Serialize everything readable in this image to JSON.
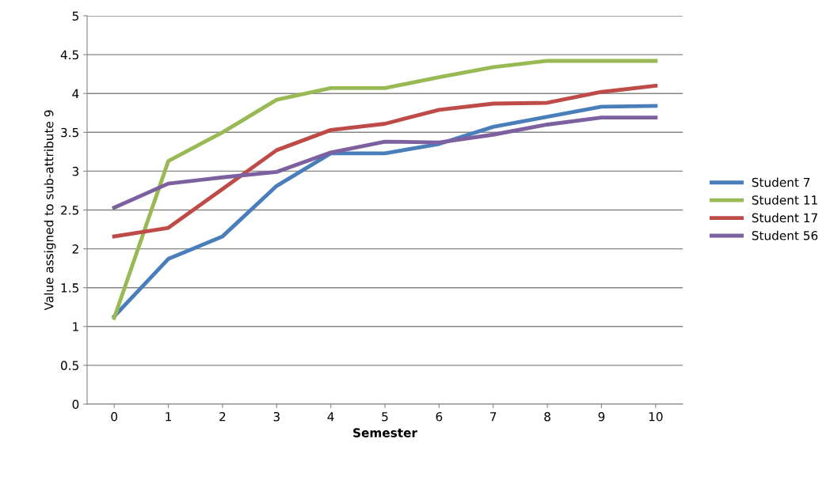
{
  "chart_data": {
    "type": "line",
    "xlabel": "Semester",
    "ylabel": "Value assigned to sub-attribute 9",
    "categories": [
      "0",
      "1",
      "2",
      "3",
      "4",
      "5",
      "6",
      "7",
      "8",
      "9",
      "10"
    ],
    "series": [
      {
        "name": "Student 7",
        "color": "#4a7ebb",
        "values": [
          1.13,
          1.87,
          2.16,
          2.81,
          3.23,
          3.23,
          3.35,
          3.57,
          3.7,
          3.83,
          3.84
        ]
      },
      {
        "name": "Student 11",
        "color": "#98b954",
        "values": [
          1.11,
          3.13,
          3.5,
          3.92,
          4.07,
          4.07,
          4.21,
          4.34,
          4.42,
          4.42,
          4.42
        ]
      },
      {
        "name": "Student 17",
        "color": "#be4b48",
        "values": [
          2.16,
          2.27,
          2.77,
          3.27,
          3.53,
          3.61,
          3.79,
          3.87,
          3.88,
          4.02,
          4.1
        ]
      },
      {
        "name": "Student 56",
        "color": "#7d60a0",
        "values": [
          2.53,
          2.84,
          2.92,
          2.99,
          3.24,
          3.38,
          3.37,
          3.47,
          3.6,
          3.69,
          3.69
        ]
      }
    ],
    "ylim": [
      0,
      5
    ],
    "yticks": [
      0,
      0.5,
      1,
      1.5,
      2,
      2.5,
      3,
      3.5,
      4,
      4.5,
      5
    ],
    "grid": "y",
    "legend": "right",
    "marker": "none",
    "line_style": "solid"
  }
}
